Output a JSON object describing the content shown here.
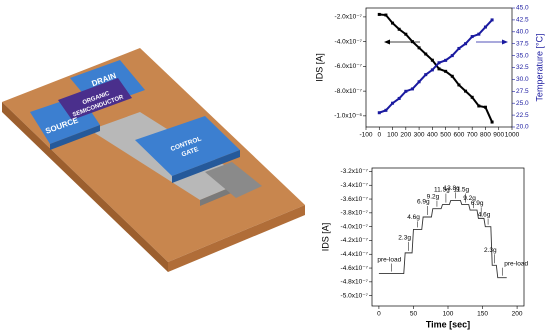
{
  "illustration": {
    "labels": [
      "DRAIN",
      "ORGANIC",
      "SEMICONDUCTOR",
      "SOURCE",
      "CONTROL",
      "GATE"
    ]
  },
  "chart_data": [
    {
      "type": "line",
      "x_label": "",
      "y_label": "IDS [A]",
      "y2_label": "Temperature [°C]",
      "x": [
        0,
        50,
        100,
        150,
        200,
        250,
        300,
        350,
        400,
        450,
        500,
        550,
        600,
        650,
        700,
        750,
        800,
        850
      ],
      "series": [
        {
          "color": "#000000",
          "values": [
            -1.8e-07,
            -1.85e-07,
            -2.5e-07,
            -3e-07,
            -3.4e-07,
            -4e-07,
            -4.5e-07,
            -5e-07,
            -5.5e-07,
            -6.2e-07,
            -6.4e-07,
            -6.8e-07,
            -7.5e-07,
            -8e-07,
            -8.5e-07,
            -9.2e-07,
            -9.3e-07,
            -1.05e-06
          ]
        },
        {
          "color": "#1a1aa0",
          "axis": "y2",
          "values": [
            23,
            23.5,
            25,
            26,
            27.5,
            28,
            29.5,
            31,
            32,
            33.5,
            34,
            35,
            36.5,
            37.5,
            39,
            39.5,
            41,
            42.5
          ]
        }
      ],
      "xlim": [
        -100,
        1000
      ],
      "xticks": [
        -100,
        0,
        100,
        200,
        300,
        400,
        500,
        600,
        700,
        800,
        900,
        1000
      ],
      "ylim": [
        -1.09e-06,
        -1.28e-07
      ],
      "yticks": [
        {
          "value": -2e-07,
          "label": "-2.0x10⁻⁷"
        },
        {
          "value": -4e-07,
          "label": "-4.0x10⁻⁷"
        },
        {
          "value": -6e-07,
          "label": "-6.0x10⁻⁷"
        },
        {
          "value": -8e-07,
          "label": "-8.0x10⁻⁷"
        },
        {
          "value": -1e-06,
          "label": "-1.0x10⁻⁶"
        }
      ],
      "y2lim": [
        20,
        45
      ],
      "y2ticks": [
        {
          "value": 20,
          "label": "20.0"
        },
        22.5,
        {
          "value": 25,
          "label": "25.0"
        },
        27.5,
        {
          "value": 30,
          "label": "30.0"
        },
        32.5,
        {
          "value": 35,
          "label": "35.0"
        },
        37.5,
        {
          "value": 40,
          "label": "40.0"
        },
        42.5,
        {
          "value": 45,
          "label": "45.0"
        }
      ]
    },
    {
      "type": "line",
      "x_label": "Time [sec]",
      "y_label": "IDS [A]",
      "x": [
        0,
        36,
        38,
        48,
        50,
        62,
        64,
        76,
        78,
        90,
        92,
        102,
        104,
        118,
        120,
        130,
        132,
        142,
        144,
        152,
        154,
        162,
        164,
        170,
        172,
        185
      ],
      "color": "#333333",
      "values": [
        -4.68e-07,
        -4.68e-07,
        -4.38e-07,
        -4.38e-07,
        -4.04e-07,
        -4.04e-07,
        -3.86e-07,
        -3.86e-07,
        -3.74e-07,
        -3.74e-07,
        -3.68e-07,
        -3.68e-07,
        -3.62e-07,
        -3.62e-07,
        -3.68e-07,
        -3.68e-07,
        -3.76e-07,
        -3.76e-07,
        -3.88e-07,
        -3.88e-07,
        -4e-07,
        -4e-07,
        -4.56e-07,
        -4.56e-07,
        -4.74e-07,
        -4.74e-07
      ],
      "annotations": [
        "pre-load",
        "2.3g",
        "4.6g",
        "6.9g",
        "9.2g",
        "11.5g",
        "13.8g",
        "11.5g",
        "9.2g",
        "6.9g",
        "4.6g",
        "2.3g",
        "pre-load"
      ],
      "xlim": [
        -10,
        210
      ],
      "xticks": [
        0,
        50,
        100,
        150,
        200
      ],
      "ylim": [
        -5.15e-07,
        -3.15e-07
      ],
      "yticks": [
        {
          "value": -3.2e-07,
          "label": "-3.2x10⁻⁷"
        },
        {
          "value": -3.4e-07,
          "label": "-3.4x10⁻⁷"
        },
        {
          "value": -3.6e-07,
          "label": "-3.6x10⁻⁷"
        },
        {
          "value": -3.8e-07,
          "label": "-3.8x10⁻⁷"
        },
        {
          "value": -4e-07,
          "label": "-4.0x10⁻⁷"
        },
        {
          "value": -4.2e-07,
          "label": "-4.2x10⁻⁷"
        },
        {
          "value": -4.4e-07,
          "label": "-4.4x10⁻⁷"
        },
        {
          "value": -4.6e-07,
          "label": "-4.6x10⁻⁷"
        },
        {
          "value": -4.8e-07,
          "label": "-4.8x10⁻⁷"
        },
        {
          "value": -5e-07,
          "label": "-5.0x10⁻⁷"
        }
      ]
    }
  ]
}
